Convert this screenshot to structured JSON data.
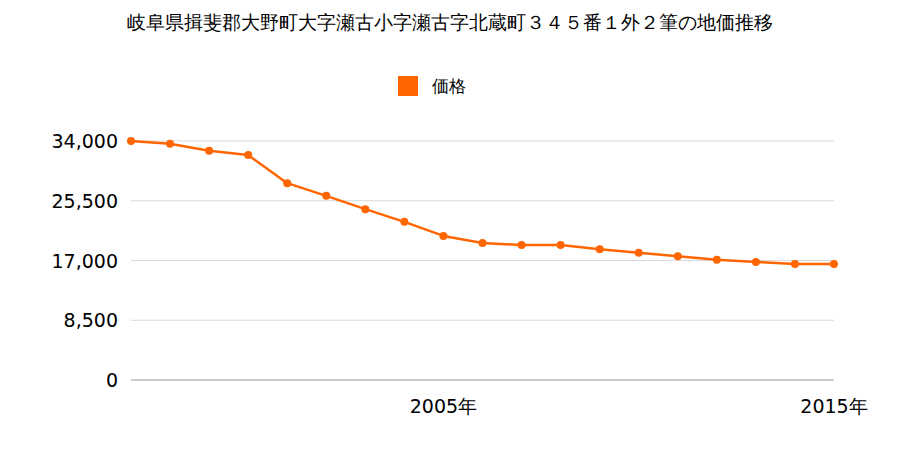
{
  "chart_data": {
    "type": "line",
    "title": "岐阜県揖斐郡大野町大字瀬古小字瀬古字北蔵町３４５番１外２筆の地価推移",
    "categories": [
      null,
      null,
      null,
      null,
      null,
      null,
      null,
      null,
      "2005年",
      null,
      null,
      null,
      null,
      null,
      null,
      null,
      null,
      null,
      "2015年"
    ],
    "series": [
      {
        "name": "価格",
        "color": "#ff6600",
        "marker": "circle",
        "values": [
          34000,
          33600,
          32600,
          32000,
          28000,
          26200,
          24300,
          22500,
          20500,
          19500,
          19200,
          19200,
          18600,
          18100,
          17600,
          17100,
          16800,
          16500,
          16500
        ]
      }
    ],
    "ylim": [
      0,
      34000
    ],
    "yticks": [
      0,
      {
        "value": 8500,
        "label": "8,500"
      },
      {
        "value": 17000,
        "label": "17,000"
      },
      {
        "value": 25500,
        "label": "25,500"
      },
      {
        "value": 34000,
        "label": "34,000"
      }
    ],
    "grid": true,
    "legend": "top"
  }
}
